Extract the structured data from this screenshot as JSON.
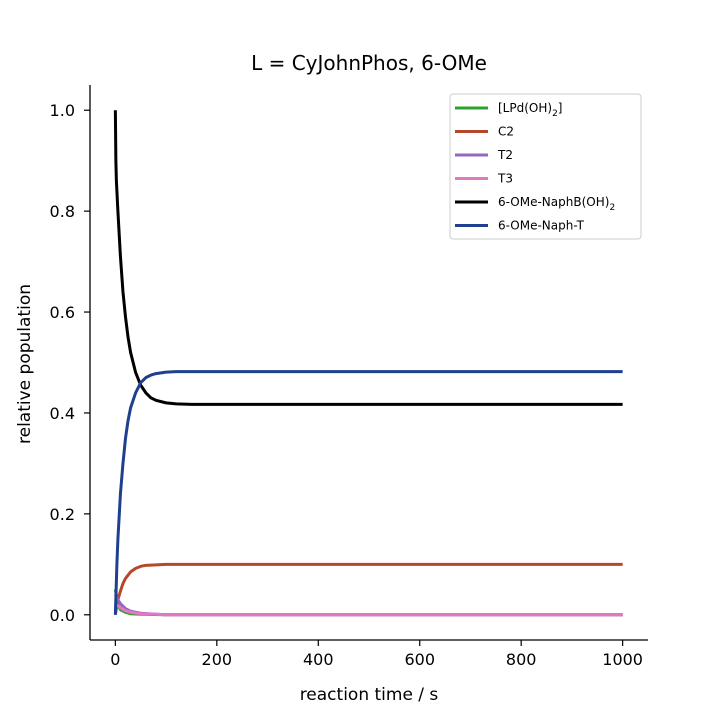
{
  "chart_data": {
    "type": "line",
    "title": "L = CyJohnPhos, 6-OMe",
    "xlabel": "reaction time / s",
    "ylabel": "relative population",
    "xlim": [
      -50,
      1050
    ],
    "ylim": [
      -0.05,
      1.05
    ],
    "xticks": [
      0,
      200,
      400,
      600,
      800,
      1000
    ],
    "yticks": [
      0.0,
      0.2,
      0.4,
      0.6,
      0.8,
      1.0
    ],
    "xtick_labels": [
      "0",
      "200",
      "400",
      "600",
      "800",
      "1000"
    ],
    "ytick_labels": [
      "0.0",
      "0.2",
      "0.4",
      "0.6",
      "0.8",
      "1.0"
    ],
    "grid": false,
    "legend_position": "top-right",
    "series": [
      {
        "name": "[LPd(OH)2]",
        "name_main": "[LPd(OH)",
        "name_sub": "2",
        "name_tail": "]",
        "color": "#2ca02c",
        "x": [
          0,
          5,
          10,
          20,
          30,
          50,
          100,
          200,
          400,
          600,
          800,
          1000
        ],
        "y": [
          0.05,
          0.02,
          0.01,
          0.005,
          0.002,
          0.001,
          0.0,
          0.0,
          0.0,
          0.0,
          0.0,
          0.0
        ]
      },
      {
        "name": "C2",
        "name_main": "C2",
        "color": "#b5482a",
        "x": [
          0,
          5,
          10,
          15,
          20,
          30,
          40,
          50,
          60,
          80,
          100,
          150,
          200,
          400,
          600,
          800,
          1000
        ],
        "y": [
          0.0,
          0.03,
          0.047,
          0.062,
          0.072,
          0.085,
          0.092,
          0.096,
          0.098,
          0.099,
          0.1,
          0.1,
          0.1,
          0.1,
          0.1,
          0.1,
          0.1
        ]
      },
      {
        "name": "T2",
        "name_main": "T2",
        "color": "#9467bd",
        "x": [
          0,
          5,
          10,
          20,
          30,
          50,
          80,
          100,
          200,
          400,
          600,
          800,
          1000
        ],
        "y": [
          0.04,
          0.03,
          0.022,
          0.012,
          0.007,
          0.003,
          0.001,
          0.0,
          0.0,
          0.0,
          0.0,
          0.0,
          0.0
        ]
      },
      {
        "name": "T3",
        "name_main": "T3",
        "color": "#e377c2",
        "x": [
          0,
          5,
          10,
          20,
          30,
          50,
          80,
          100,
          200,
          400,
          600,
          800,
          1000
        ],
        "y": [
          0.02,
          0.018,
          0.014,
          0.008,
          0.005,
          0.002,
          0.001,
          0.0,
          0.0,
          0.0,
          0.0,
          0.0,
          0.0
        ]
      },
      {
        "name": "6-OMe-NaphB(OH)2",
        "name_main": "6-OMe-NaphB(OH)",
        "name_sub": "2",
        "color": "#000000",
        "x": [
          0,
          1,
          2,
          5,
          10,
          15,
          20,
          25,
          30,
          40,
          50,
          60,
          70,
          80,
          100,
          120,
          150,
          200,
          300,
          400,
          600,
          800,
          1000
        ],
        "y": [
          1.0,
          0.9,
          0.86,
          0.8,
          0.71,
          0.64,
          0.59,
          0.55,
          0.52,
          0.48,
          0.455,
          0.44,
          0.43,
          0.425,
          0.42,
          0.418,
          0.417,
          0.417,
          0.417,
          0.417,
          0.417,
          0.417,
          0.417
        ]
      },
      {
        "name": "6-OMe-Naph-T",
        "name_main": "6-OMe-Naph-T",
        "color": "#1f3f8f",
        "x": [
          0,
          3,
          5,
          10,
          15,
          20,
          25,
          30,
          40,
          50,
          60,
          70,
          80,
          100,
          120,
          150,
          200,
          400,
          600,
          800,
          1000
        ],
        "y": [
          0.0,
          0.1,
          0.15,
          0.24,
          0.3,
          0.35,
          0.385,
          0.41,
          0.44,
          0.46,
          0.47,
          0.475,
          0.478,
          0.481,
          0.482,
          0.482,
          0.482,
          0.482,
          0.482,
          0.482,
          0.482
        ]
      }
    ]
  }
}
